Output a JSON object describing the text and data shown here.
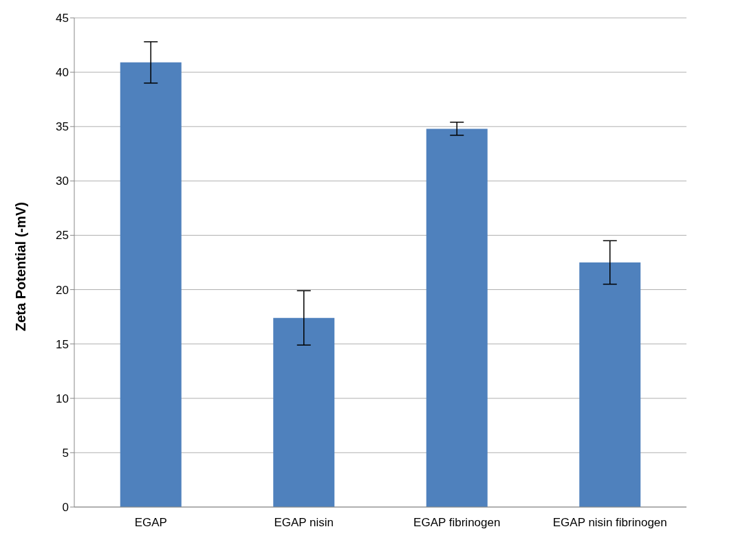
{
  "chart_data": {
    "type": "bar",
    "ylabel": "Zeta Potential (-mV)",
    "categories": [
      "EGAP",
      "EGAP nisin",
      "EGAP fibrinogen",
      "EGAP nisin fibrinogen"
    ],
    "values": [
      40.9,
      17.4,
      34.8,
      22.5
    ],
    "errors": [
      1.9,
      2.5,
      0.6,
      2.0
    ],
    "color": "#4f81bd",
    "ylim": [
      0,
      45
    ],
    "yticks": [
      0,
      5,
      10,
      15,
      20,
      25,
      30,
      35,
      40,
      45
    ],
    "grid": "y",
    "legend": false
  }
}
